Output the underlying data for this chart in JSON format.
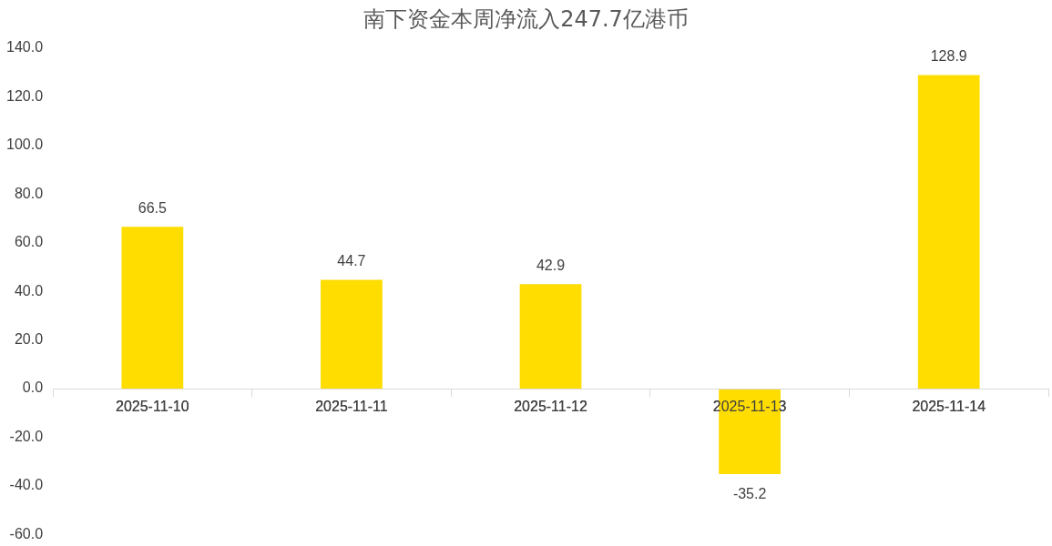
{
  "chart_data": {
    "type": "bar",
    "title": "南下资金本周净流入247.7亿港币",
    "categories": [
      "2025-11-10",
      "2025-11-11",
      "2025-11-12",
      "2025-11-13",
      "2025-11-14"
    ],
    "values": [
      66.5,
      44.7,
      42.9,
      -35.2,
      128.9
    ],
    "color": "#ffdd00",
    "ylim": [
      -60,
      140
    ],
    "yticks": [
      {
        "value": -60,
        "label": "-60.0"
      },
      {
        "value": -40,
        "label": "-40.0"
      },
      {
        "value": -20,
        "label": "-20.0"
      },
      {
        "value": 0,
        "label": "0.0"
      },
      {
        "value": 20,
        "label": "20.0"
      },
      {
        "value": 40,
        "label": "40.0"
      },
      {
        "value": 60,
        "label": "60.0"
      },
      {
        "value": 80,
        "label": "80.0"
      },
      {
        "value": 100,
        "label": "100.0"
      },
      {
        "value": 120,
        "label": "120.0"
      },
      {
        "value": 140,
        "label": "140.0"
      }
    ],
    "grid": false,
    "legend": false,
    "data_labels": true
  }
}
